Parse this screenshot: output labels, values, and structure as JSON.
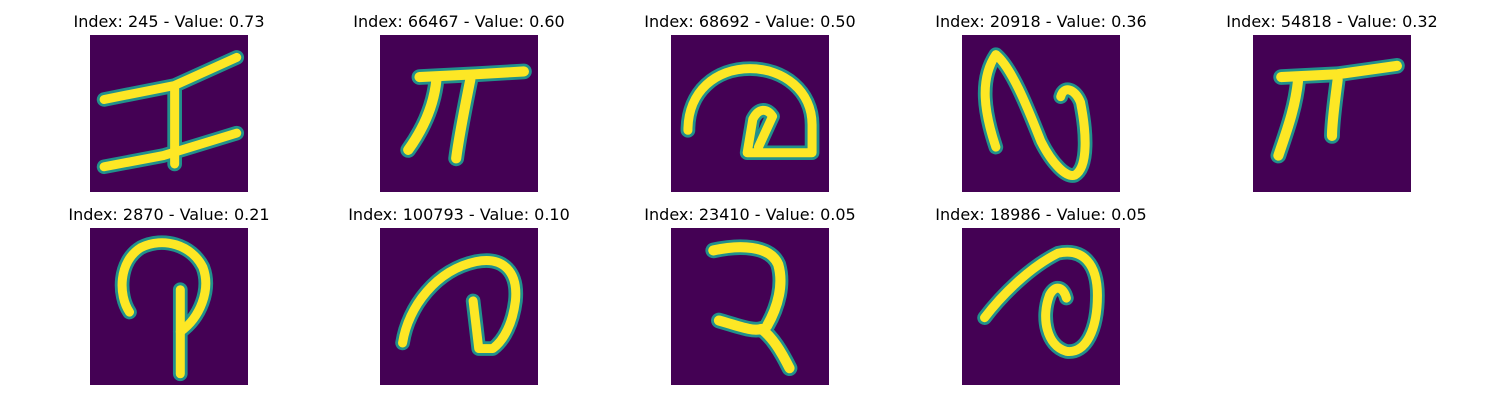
{
  "figure": {
    "background": "#ffffff",
    "colormap": "viridis",
    "colors": {
      "low": "#440154",
      "mid": "#21918c",
      "high": "#fde725"
    }
  },
  "panels": [
    {
      "title": "Index: 245 - Value: 0.73",
      "index": 245,
      "value": 0.73,
      "glyph": "handwritten-character"
    },
    {
      "title": "Index: 66467 - Value: 0.60",
      "index": 66467,
      "value": 0.6,
      "glyph": "handwritten-character"
    },
    {
      "title": "Index: 68692 - Value: 0.50",
      "index": 68692,
      "value": 0.5,
      "glyph": "handwritten-character"
    },
    {
      "title": "Index: 20918 - Value: 0.36",
      "index": 20918,
      "value": 0.36,
      "glyph": "handwritten-character"
    },
    {
      "title": "Index: 54818 - Value: 0.32",
      "index": 54818,
      "value": 0.32,
      "glyph": "handwritten-character"
    },
    {
      "title": "Index: 2870 - Value: 0.21",
      "index": 2870,
      "value": 0.21,
      "glyph": "handwritten-character"
    },
    {
      "title": "Index: 100793 - Value: 0.10",
      "index": 100793,
      "value": 0.1,
      "glyph": "handwritten-character"
    },
    {
      "title": "Index: 23410 - Value: 0.05",
      "index": 23410,
      "value": 0.05,
      "glyph": "handwritten-character"
    },
    {
      "title": "Index: 18986 - Value: 0.05",
      "index": 18986,
      "value": 0.05,
      "glyph": "handwritten-character"
    }
  ]
}
